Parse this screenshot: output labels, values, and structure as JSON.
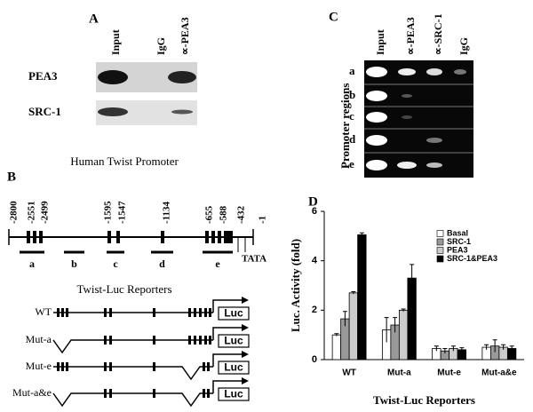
{
  "panel_a": {
    "label": "A",
    "columns": [
      "Input",
      "IgG",
      "∝-PEA3"
    ],
    "rows": [
      "PEA3",
      "SRC-1"
    ]
  },
  "panel_c": {
    "label": "C",
    "columns": [
      "Input",
      "∝-PEA3",
      "∝-SRC-1",
      "IgG"
    ],
    "axis_title": "Promoter regions",
    "rows": [
      "a",
      "b",
      "c",
      "d",
      "e"
    ]
  },
  "panel_b": {
    "label": "B",
    "title": "Human Twist Promoter",
    "positions": [
      "-2800",
      "-2551",
      "-2499",
      "-1595",
      "-1547",
      "-1134",
      "-655",
      "-588",
      "-432",
      "-1"
    ],
    "regions": [
      "a",
      "b",
      "c",
      "d",
      "e"
    ],
    "tata": "TATA",
    "reporters_title": "Twist-Luc Reporters",
    "reporters": [
      "WT",
      "Mut-a",
      "Mut-e",
      "Mut-a&e"
    ],
    "luc": "Luc"
  },
  "chart_data": {
    "type": "bar",
    "panel_label": "D",
    "y_label": "Luc. Activity (fold)",
    "x_label": "Twist-Luc Reporters",
    "categories": [
      "WT",
      "Mut-a",
      "Mut-e",
      "Mut-a&e"
    ],
    "ylim": [
      0,
      6
    ],
    "yticks": [
      0,
      2,
      4,
      6
    ],
    "series": [
      {
        "name": "Basal",
        "color": "#ffffff",
        "values": [
          1.0,
          1.2,
          0.45,
          0.5
        ],
        "errors": [
          0.05,
          0.5,
          0.1,
          0.1
        ]
      },
      {
        "name": "SRC-1",
        "color": "#999999",
        "values": [
          1.65,
          1.4,
          0.35,
          0.55
        ],
        "errors": [
          0.3,
          0.3,
          0.1,
          0.25
        ]
      },
      {
        "name": "PEA3",
        "color": "#cccccc",
        "values": [
          2.7,
          2.0,
          0.45,
          0.5
        ],
        "errors": [
          0.05,
          0.05,
          0.1,
          0.1
        ]
      },
      {
        "name": "SRC-1&PEA3",
        "color": "#000000",
        "values": [
          5.05,
          3.3,
          0.4,
          0.45
        ],
        "errors": [
          0.08,
          0.55,
          0.08,
          0.1
        ]
      }
    ],
    "legend": "upper right"
  }
}
